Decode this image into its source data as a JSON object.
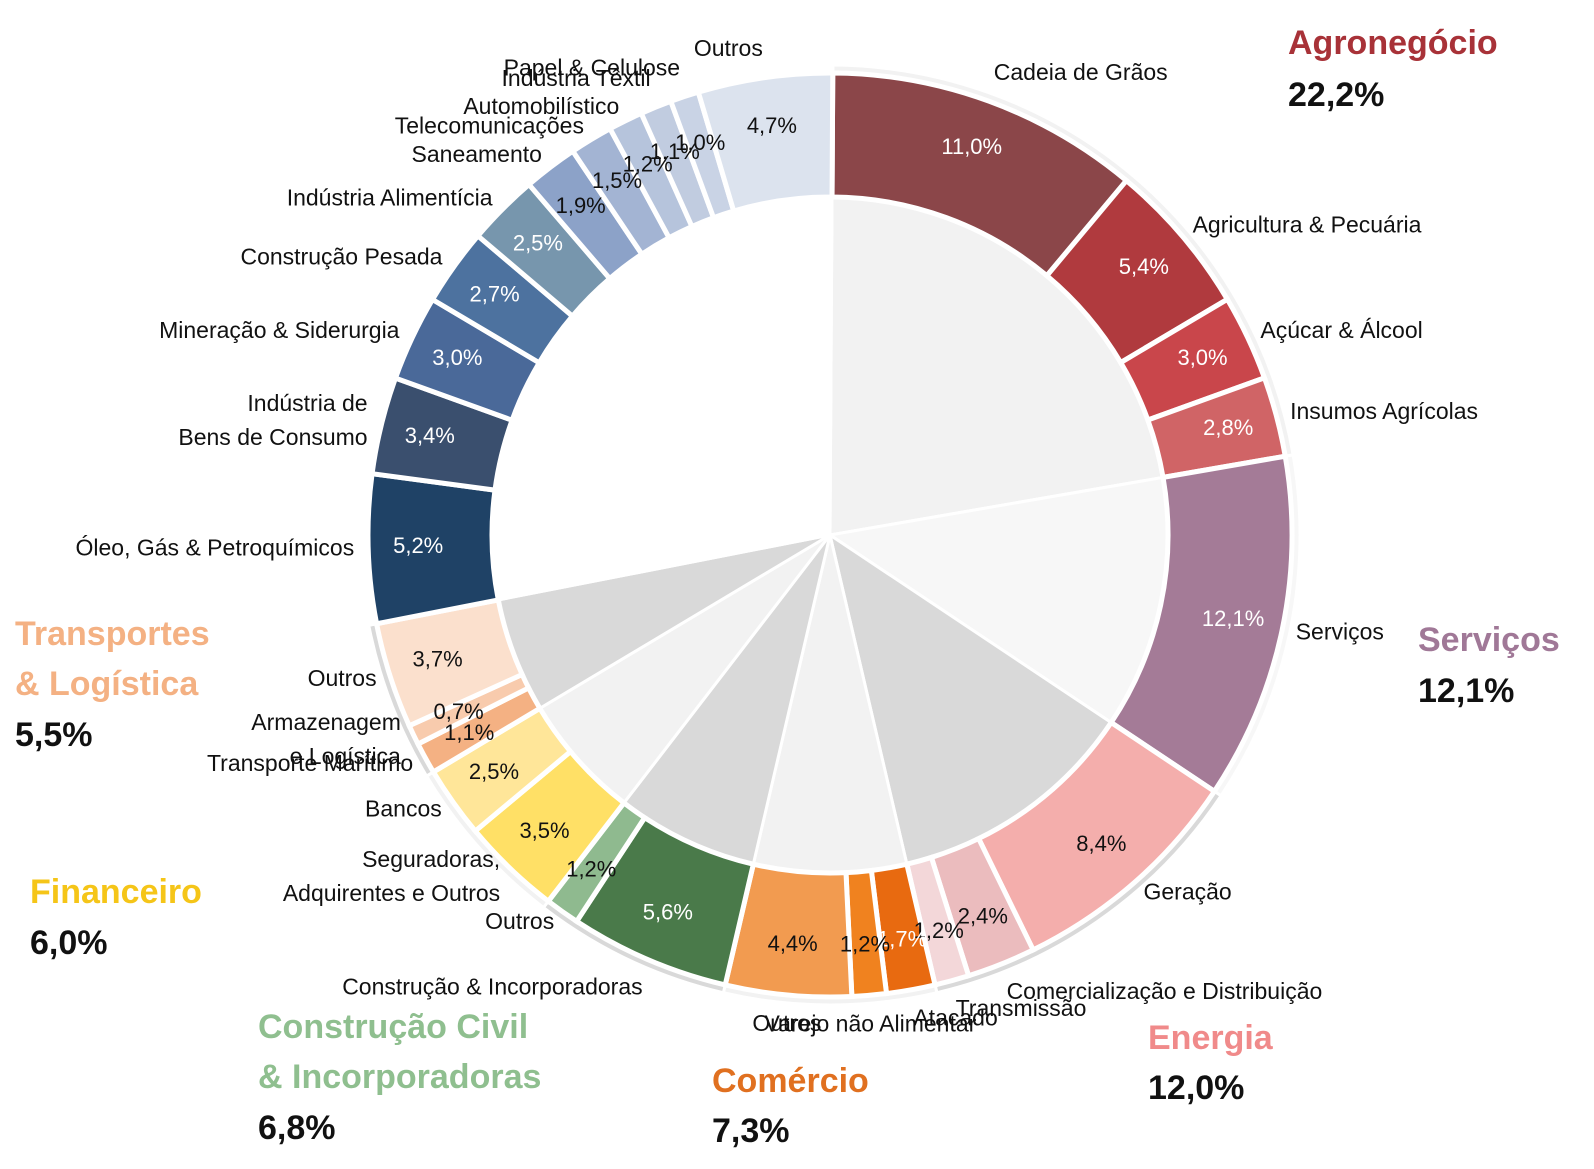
{
  "chart_data": {
    "type": "sunburst",
    "groups": [
      {
        "name": "Agronegócio",
        "total": 22.2,
        "total_label": "22,2%",
        "color": "#a83238",
        "inner_color": "#f2f2f2",
        "segments": [
          {
            "name": "Cadeia de Grãos",
            "value": 11.0,
            "value_label": "11,0%",
            "color": "#8b4649"
          },
          {
            "name": "Agricultura & Pecuária",
            "value": 5.4,
            "value_label": "5,4%",
            "color": "#b03a3e"
          },
          {
            "name": "Açúcar & Álcool",
            "value": 3.0,
            "value_label": "3,0%",
            "color": "#c9464b"
          },
          {
            "name": "Insumos Agrícolas",
            "value": 2.8,
            "value_label": "2,8%",
            "color": "#d06466"
          }
        ]
      },
      {
        "name": "Serviços",
        "total": 12.1,
        "total_label": "12,1%",
        "color": "#a07897",
        "inner_color": "#f7f7f7",
        "segments": [
          {
            "name": "Serviços",
            "value": 12.1,
            "value_label": "12,1%",
            "color": "#a47b97"
          }
        ]
      },
      {
        "name": "Energia",
        "total": 12.0,
        "total_label": "12,0%",
        "color": "#f08a8a",
        "inner_color": "#d9d9d9",
        "segments": [
          {
            "name": "Geração",
            "value": 8.4,
            "value_label": "8,4%",
            "color": "#f4aeac"
          },
          {
            "name": "Comercialização e Distribuição",
            "value": 2.4,
            "value_label": "2,4%",
            "color": "#ebbcbe"
          },
          {
            "name": "Transmissão",
            "value": 1.2,
            "value_label": "1,2%",
            "color": "#f3d7d9"
          }
        ]
      },
      {
        "name": "Comércio",
        "total": 7.3,
        "total_label": "7,3%",
        "color": "#e07020",
        "inner_color": "#f2f2f2",
        "segments": [
          {
            "name": "Atacado",
            "value": 1.7,
            "value_label": "1,7%",
            "color": "#e86a10"
          },
          {
            "name": "Varejo não Alimentar",
            "value": 1.2,
            "value_label": "1,2%",
            "color": "#f0821f"
          },
          {
            "name": "Outros",
            "value": 4.4,
            "value_label": "4,4%",
            "color": "#f29b50"
          }
        ]
      },
      {
        "name": "Construção Civil\n& Incorporadoras",
        "total": 6.8,
        "total_label": "6,8%",
        "color": "#8fbf8f",
        "inner_color": "#d9d9d9",
        "segments": [
          {
            "name": "Construção & Incorporadoras",
            "value": 5.6,
            "value_label": "5,6%",
            "color": "#4a7a4a"
          },
          {
            "name": "Outros",
            "value": 1.2,
            "value_label": "1,2%",
            "color": "#8fba8f"
          }
        ]
      },
      {
        "name": "Financeiro",
        "total": 6.0,
        "total_label": "6,0%",
        "color": "#f5c518",
        "inner_color": "#f2f2f2",
        "segments": [
          {
            "name": "Seguradoras,\nAdquirentes e Outros",
            "value": 3.5,
            "value_label": "3,5%",
            "color": "#ffe066"
          },
          {
            "name": "Bancos",
            "value": 2.5,
            "value_label": "2,5%",
            "color": "#ffe699"
          }
        ]
      },
      {
        "name": "Transportes\n& Logística",
        "total": 5.5,
        "total_label": "5,5%",
        "color": "#f4b183",
        "inner_color": "#d9d9d9",
        "segments": [
          {
            "name": "Transporte Marítimo",
            "value": 1.1,
            "value_label": "1,1%",
            "color": "#f4b183"
          },
          {
            "name": "Armazenagem\ne Logística",
            "value": 0.7,
            "value_label": "0,7%",
            "color": "#f8cbad"
          },
          {
            "name": "Outros",
            "value": 3.7,
            "value_label": "3,7%",
            "color": "#fbe0cd"
          }
        ]
      },
      {
        "inner_color": "#ffffff",
        "segments": [
          {
            "name": "Óleo, Gás & Petroquímicos",
            "value": 5.2,
            "value_label": "5,2%",
            "color": "#1f4266"
          },
          {
            "name": "Indústria de\nBens de Consumo",
            "value": 3.4,
            "value_label": "3,4%",
            "color": "#3a4f6e"
          },
          {
            "name": "Mineração & Siderurgia",
            "value": 3.0,
            "value_label": "3,0%",
            "color": "#4a6999"
          },
          {
            "name": "Construção Pesada",
            "value": 2.7,
            "value_label": "2,7%",
            "color": "#4d729f"
          },
          {
            "name": "Indústria Alimentícia",
            "value": 2.5,
            "value_label": "2,5%",
            "color": "#7796ad"
          },
          {
            "name": "Saneamento",
            "value": 1.9,
            "value_label": "1,9%",
            "color": "#8ca2c8"
          },
          {
            "name": "Telecomunicações",
            "value": 1.5,
            "value_label": "1,5%",
            "color": "#a3b4d3"
          },
          {
            "name": "Automobilístico",
            "value": 1.2,
            "value_label": "1,2%",
            "color": "#b6c4dc"
          },
          {
            "name": "Indústria Têxtil",
            "value": 1.1,
            "value_label": "1,1%",
            "color": "#c1cce0"
          },
          {
            "name": "Papel & Celulose",
            "value": 1.0,
            "value_label": "1,0%",
            "color": "#c9d3e5"
          },
          {
            "name": "Outros",
            "value": 4.7,
            "value_label": "4,7%",
            "color": "#dce3ee"
          }
        ]
      }
    ]
  }
}
